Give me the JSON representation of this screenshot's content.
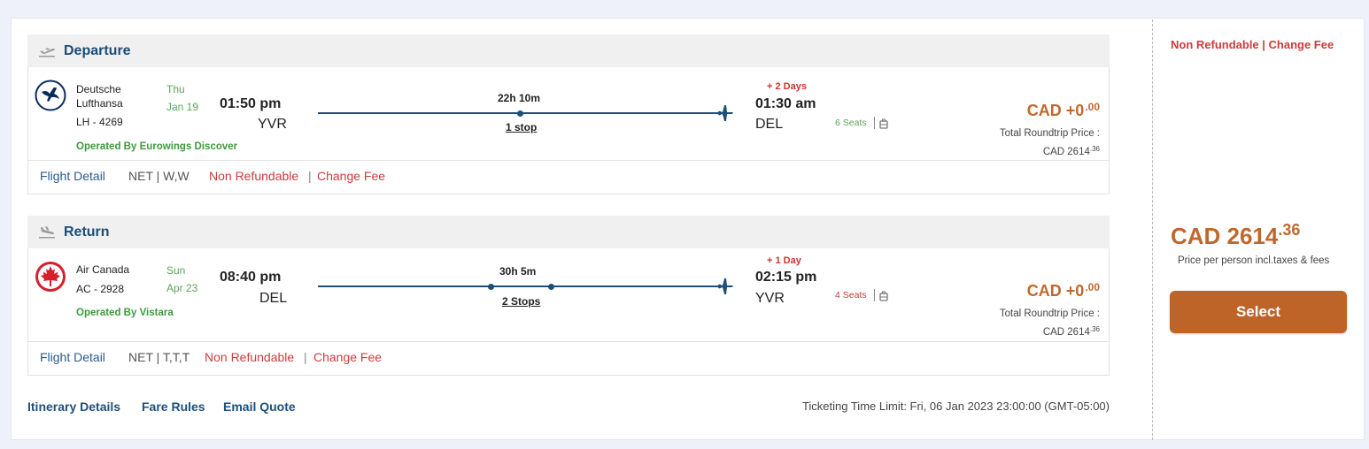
{
  "departure": {
    "title": "Departure",
    "airline_line1": "Deutsche",
    "airline_line2": "Lufthansa",
    "flight_no": "LH - 4269",
    "day": "Thu",
    "date": "Jan 19",
    "operated_by": "Operated By Eurowings Discover",
    "depart_time": "01:50 pm",
    "depart_code": "YVR",
    "duration": "22h 10m",
    "stops": "1 stop",
    "plus_days": "+ 2 Days",
    "arrive_time": "01:30 am",
    "arrive_code": "DEL",
    "seats": "6 Seats",
    "price_main": "CAD +0",
    "price_cents": ".00",
    "total_label": "Total Roundtrip Price :",
    "total_value": "CAD 2614",
    "total_cents": ".36",
    "footer": {
      "flight_detail": "Flight Detail",
      "fare_class": "NET | W,W",
      "non_refundable": "Non Refundable",
      "pipe": "|",
      "change_fee": "Change Fee"
    }
  },
  "return": {
    "title": "Return",
    "airline_line1": "Air Canada",
    "flight_no": "AC - 2928",
    "day": "Sun",
    "date": "Apr 23",
    "operated_by": "Operated By Vistara",
    "depart_time": "08:40 pm",
    "depart_code": "DEL",
    "duration": "30h 5m",
    "stops": "2 Stops",
    "plus_days": "+ 1 Day",
    "arrive_time": "02:15 pm",
    "arrive_code": "YVR",
    "seats": "4 Seats",
    "price_main": "CAD +0",
    "price_cents": ".00",
    "total_label": "Total Roundtrip Price :",
    "total_value": "CAD 2614",
    "total_cents": ".36",
    "footer": {
      "flight_detail": "Flight Detail",
      "fare_class": "NET | T,T,T",
      "non_refundable": "Non Refundable",
      "pipe": "|",
      "change_fee": "Change Fee"
    }
  },
  "bottom_links": {
    "itinerary": "Itinerary Details",
    "fare_rules": "Fare Rules",
    "email_quote": "Email Quote"
  },
  "ticketing_limit": "Ticketing Time Limit: Fri, 06 Jan 2023 23:00:00 (GMT-05:00)",
  "side": {
    "refund_change": "Non Refundable | Change Fee",
    "price_main": "CAD 2614",
    "price_cents": ".36",
    "price_note": "Price per person incl.taxes & fees",
    "select_label": "Select"
  },
  "colors": {
    "accent": "#be6428",
    "heading_blue": "#1b4d79",
    "refund_red": "#cc3b3b",
    "seats_green": "#5aa65a",
    "seats_red": "#cc3b3b"
  },
  "icons": {
    "departure_plane": "takeoff-plane-icon",
    "return_plane": "landing-plane-icon",
    "lufthansa_logo": "lufthansa-crane-logo",
    "air_canada_logo": "maple-leaf-logo",
    "baggage": "luggage-icon",
    "arrival_plane": "plane-right-icon"
  }
}
